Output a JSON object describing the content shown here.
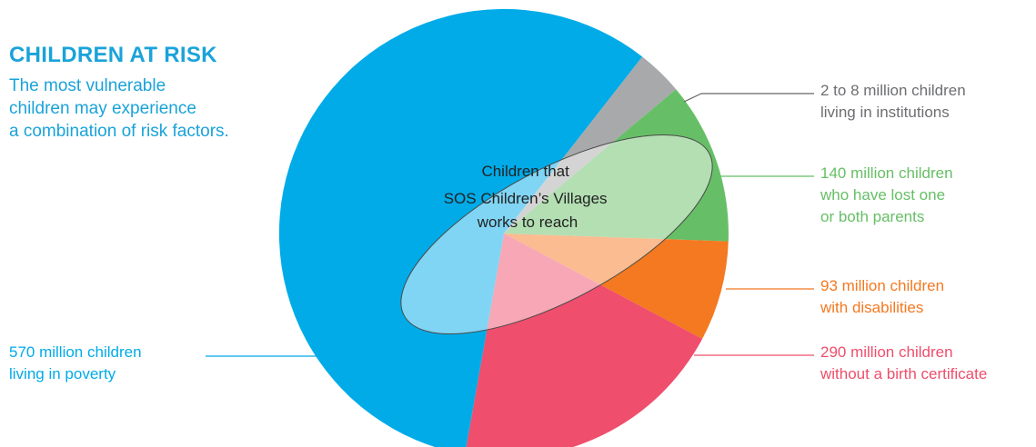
{
  "header": {
    "title": "CHILDREN AT RISK",
    "subtitle_lines": [
      "The most vulnerable",
      "children may experience",
      "a combination of risk factors."
    ]
  },
  "overlay": {
    "lines": [
      "Children that",
      "SOS Children’s Villages",
      "works to reach"
    ]
  },
  "colors": {
    "title": "#1aa3d9",
    "poverty": "#00abe8",
    "institutions": "#a8a9ab",
    "orphans": "#66bf66",
    "disabilities": "#f47920",
    "birth_certificate": "#ef4e6c"
  },
  "chart_data": {
    "type": "pie",
    "title": "CHILDREN AT RISK",
    "slices": [
      {
        "key": "institutions",
        "lines": [
          "2 to 8 million children",
          "living in institutions"
        ]
      },
      {
        "key": "orphans",
        "value": 140,
        "lines": [
          "140 million children",
          "who have lost one",
          "or both parents"
        ]
      },
      {
        "key": "disabilities",
        "value": 93,
        "lines": [
          "93 million children",
          "with disabilities"
        ]
      },
      {
        "key": "birth_certificate",
        "value": 290,
        "lines": [
          "290 million children",
          "without a birth certificate"
        ]
      },
      {
        "key": "poverty",
        "value": 570,
        "lines": [
          "570 million children",
          "living in poverty"
        ]
      }
    ]
  }
}
